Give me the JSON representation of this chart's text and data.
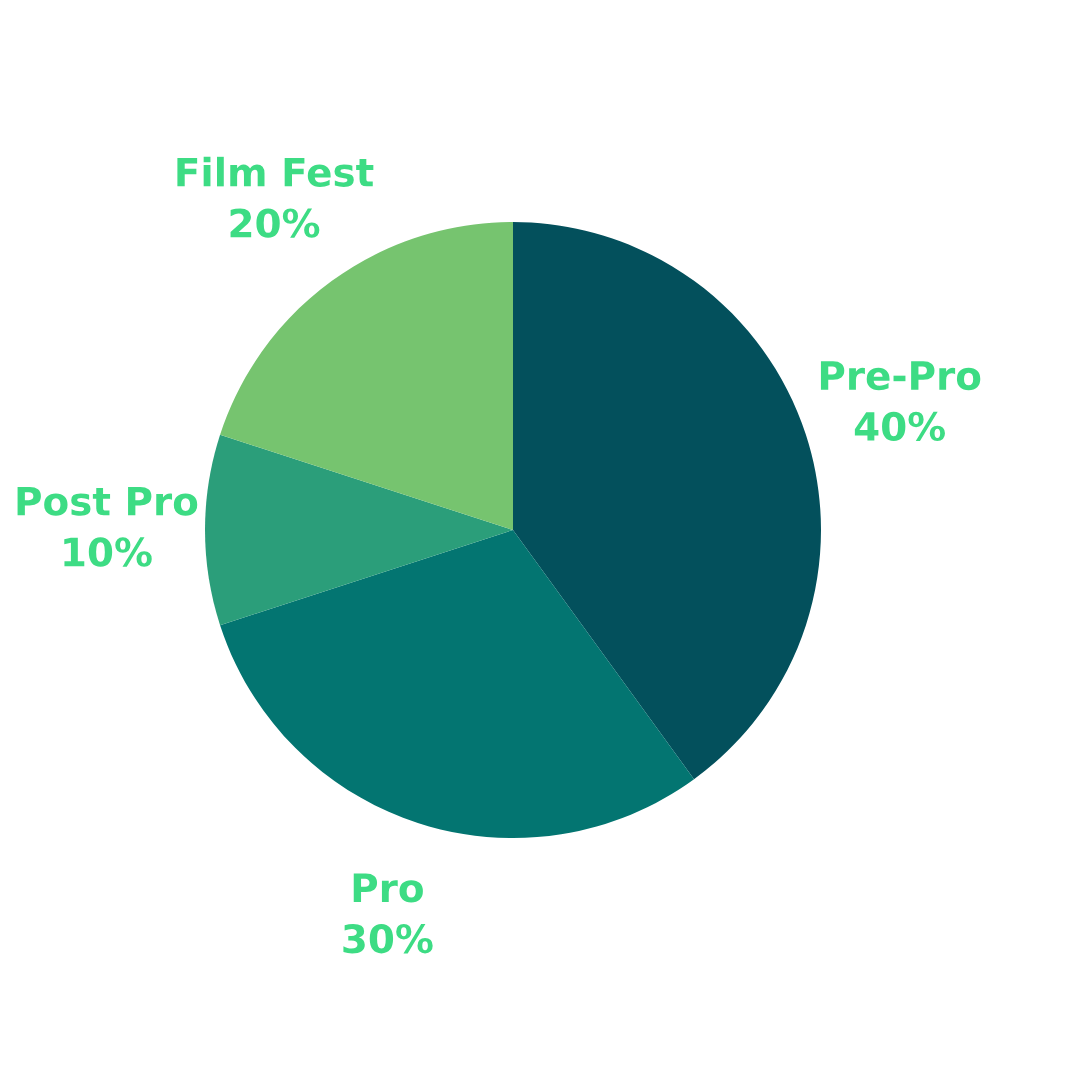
{
  "chart_data": {
    "type": "pie",
    "categories": [
      "Pre-Pro",
      "Pro",
      "Post Pro",
      "Film Fest"
    ],
    "values": [
      40,
      30,
      10,
      20
    ],
    "colors": [
      "#03505c",
      "#037571",
      "#2b9e7a",
      "#76c46f"
    ],
    "value_labels": [
      "40%",
      "30%",
      "10%",
      "20%"
    ]
  }
}
